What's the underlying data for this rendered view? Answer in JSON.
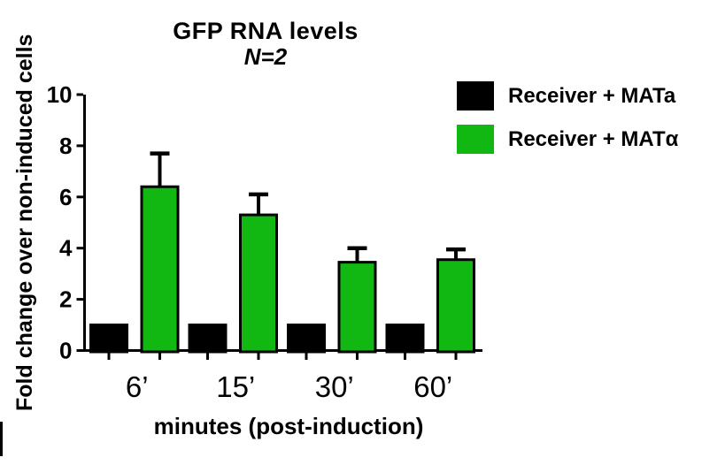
{
  "chart_data": {
    "type": "bar",
    "title": "GFP RNA levels",
    "subtitle": "N=2",
    "xlabel": "minutes (post-induction)",
    "ylabel": "Fold change over non-induced cells",
    "categories": [
      "6’",
      "15’",
      "30’",
      "60’"
    ],
    "series": [
      {
        "name": "Receiver + MATa",
        "color": "#000000",
        "values": [
          1.0,
          1.0,
          1.0,
          1.0
        ],
        "errors_upper": [
          0,
          0,
          0,
          0
        ]
      },
      {
        "name": "Receiver + MATα",
        "color": "#12b812",
        "values": [
          6.4,
          5.3,
          3.45,
          3.55
        ],
        "errors_upper": [
          1.3,
          0.8,
          0.55,
          0.4
        ]
      }
    ],
    "ylim": [
      0,
      10
    ],
    "yticks": [
      0,
      2,
      4,
      6,
      8,
      10
    ],
    "grid": false,
    "legend_position": "upper-right",
    "error_bar_style": "upper only, capped",
    "axis_color": "#000000",
    "background_color": "#ffffff"
  }
}
